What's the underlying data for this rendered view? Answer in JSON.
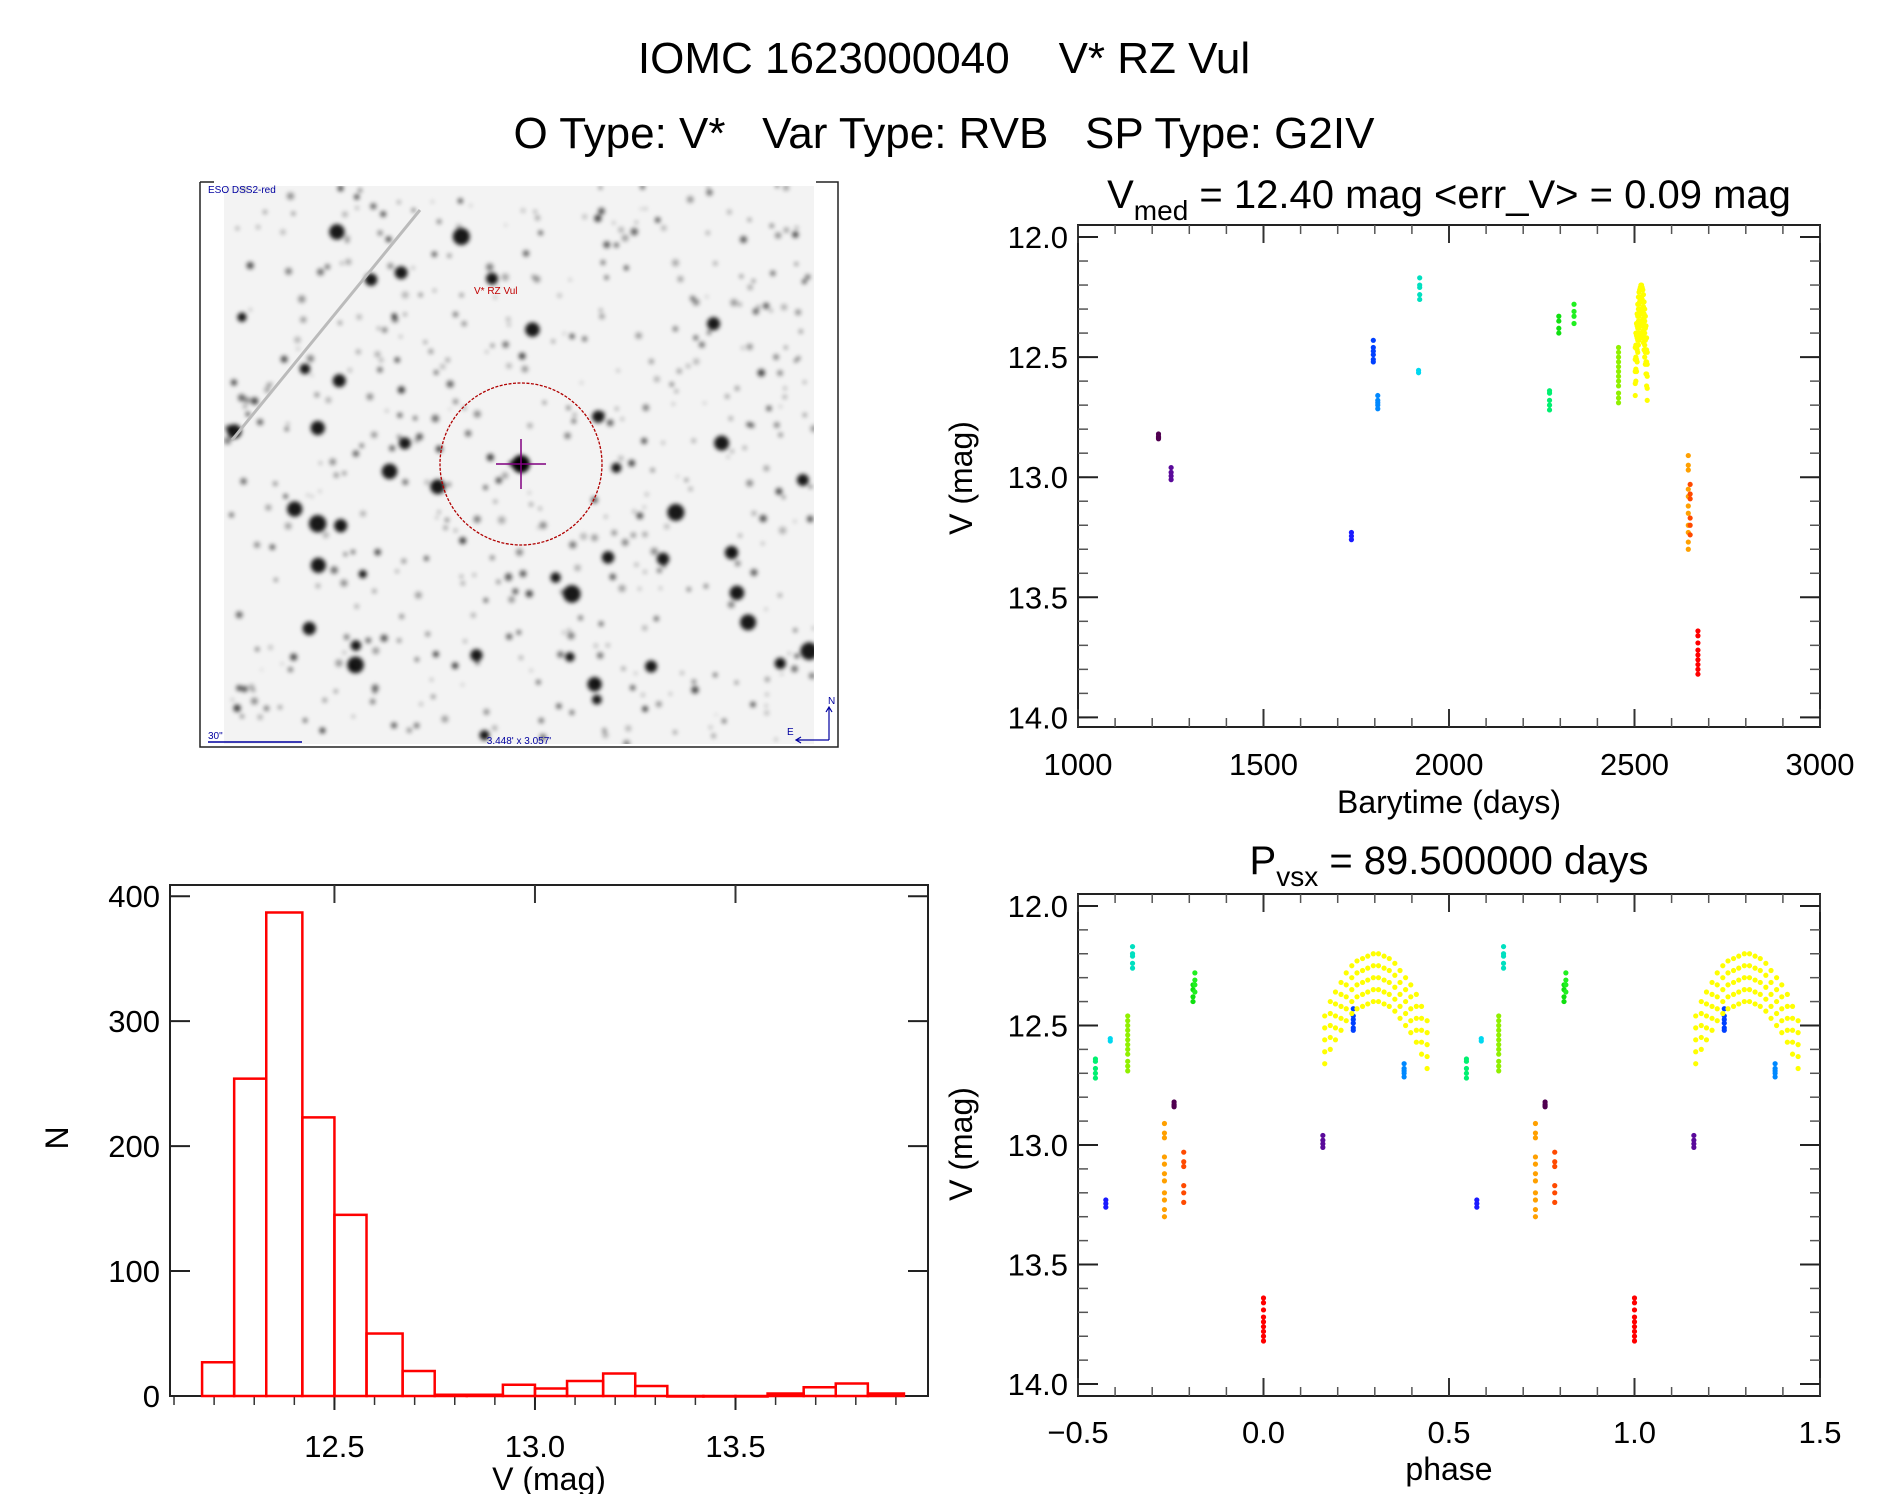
{
  "header": {
    "line1": "IOMC 1623000040    V* RZ Vul",
    "line2": "O Type: V*   Var Type: RVB   SP Type: G2IV"
  },
  "finder_image": {
    "survey_label": "ESO DSS2-red",
    "target_label": "V* RZ Vul",
    "scale_label": "30\"",
    "fov_label": "3.448' x 3.057'",
    "north_label": "N",
    "east_label": "E",
    "circle_color": "#b00000",
    "crosshair_color": "#800080",
    "annotation_color": "#0000a0"
  },
  "chart_data": [
    {
      "type": "scatter",
      "title_main": "V",
      "title_sub": "med",
      "title_rest": " = 12.40 mag <err_V> = 0.09 mag",
      "xlabel": "Barytime (days)",
      "ylabel": "V (mag)",
      "xlim": [
        1000,
        3000
      ],
      "ylim": [
        14.04,
        11.95
      ],
      "y_inverted": true,
      "xticks": [
        "1000",
        "1500",
        "2000",
        "2500",
        "3000"
      ],
      "yticks": [
        "12.0",
        "12.5",
        "13.0",
        "13.5",
        "14.0"
      ],
      "grid": false,
      "color_scale": "rainbow by time",
      "series": [
        {
          "color": "#500050",
          "t": 1217,
          "phase": 0.759,
          "V": [
            12.82,
            12.83,
            12.835,
            12.84
          ]
        },
        {
          "color": "#5a0a9a",
          "t": 1251,
          "phase": 0.16,
          "V": [
            12.96,
            12.98,
            12.995,
            13.01
          ]
        },
        {
          "color": "#1a1aff",
          "t": 1737,
          "phase": 0.575,
          "V": [
            13.23,
            13.245,
            13.26
          ]
        },
        {
          "color": "#0040ff",
          "t": 1796,
          "phase": 0.242,
          "V": [
            12.43,
            12.46,
            12.475,
            12.49,
            12.51,
            12.52
          ]
        },
        {
          "color": "#0088ff",
          "t": 1808,
          "phase": 0.379,
          "V": [
            12.66,
            12.68,
            12.69,
            12.7,
            12.715
          ]
        },
        {
          "color": "#00e0c0",
          "t": 1921,
          "phase": 0.647,
          "V": [
            12.17,
            12.2,
            12.21,
            12.24,
            12.26
          ]
        },
        {
          "color": "#00d8f0",
          "t": 1918,
          "phase": 0.587,
          "V": [
            12.555,
            12.565
          ]
        },
        {
          "color": "#00f070",
          "t": 2271,
          "phase": 0.547,
          "V": [
            12.64,
            12.65,
            12.68,
            12.7,
            12.72
          ]
        },
        {
          "color": "#10e010",
          "t": 2296,
          "phase": 0.81,
          "V": [
            12.33,
            12.35,
            12.38,
            12.4
          ]
        },
        {
          "color": "#20f020",
          "t": 2337,
          "phase": 0.815,
          "V": [
            12.28,
            12.31,
            12.33,
            12.36
          ]
        },
        {
          "color": "#90f000",
          "t": 2457,
          "phase": 0.634,
          "V": [
            12.46,
            12.48,
            12.5,
            12.52,
            12.54,
            12.56,
            12.58,
            12.6,
            12.62,
            12.65,
            12.67,
            12.69
          ]
        },
        {
          "color": "#ffff00",
          "t": 2502.0,
          "phase": 0.165,
          "V": [
            12.46,
            12.51,
            12.56,
            12.61,
            12.66
          ]
        },
        {
          "color": "#ffff00",
          "t": 2503.7,
          "phase": 0.18,
          "V": [
            12.4,
            12.45,
            12.5,
            12.55,
            12.6
          ]
        },
        {
          "color": "#ffff00",
          "t": 2505.4,
          "phase": 0.194,
          "V": [
            12.36,
            12.41,
            12.46,
            12.51,
            12.56
          ]
        },
        {
          "color": "#ffff00",
          "t": 2507.1,
          "phase": 0.209,
          "V": [
            12.32,
            12.37,
            12.42,
            12.47,
            12.52
          ]
        },
        {
          "color": "#ffff00",
          "t": 2508.8,
          "phase": 0.223,
          "V": [
            12.28,
            12.33,
            12.38,
            12.43,
            12.48
          ]
        },
        {
          "color": "#ffff00",
          "t": 2510.5,
          "phase": 0.238,
          "V": [
            12.25,
            12.3,
            12.35,
            12.4,
            12.45
          ]
        },
        {
          "color": "#ffff00",
          "t": 2512.2,
          "phase": 0.252,
          "V": [
            12.23,
            12.28,
            12.33,
            12.38,
            12.43
          ]
        },
        {
          "color": "#ffff00",
          "t": 2513.9,
          "phase": 0.267,
          "V": [
            12.22,
            12.27,
            12.32,
            12.37,
            12.42
          ]
        },
        {
          "color": "#ffff00",
          "t": 2515.6,
          "phase": 0.281,
          "V": [
            12.21,
            12.26,
            12.31,
            12.36,
            12.41
          ]
        },
        {
          "color": "#ffff00",
          "t": 2517.3,
          "phase": 0.296,
          "V": [
            12.2,
            12.25,
            12.3,
            12.35,
            12.4
          ]
        },
        {
          "color": "#ffff00",
          "t": 2519.0,
          "phase": 0.31,
          "V": [
            12.2,
            12.25,
            12.3,
            12.35,
            12.4
          ]
        },
        {
          "color": "#ffff00",
          "t": 2520.7,
          "phase": 0.325,
          "V": [
            12.21,
            12.26,
            12.31,
            12.36,
            12.41
          ]
        },
        {
          "color": "#ffff00",
          "t": 2522.4,
          "phase": 0.339,
          "V": [
            12.22,
            12.27,
            12.32,
            12.37,
            12.42
          ]
        },
        {
          "color": "#ffff00",
          "t": 2524.1,
          "phase": 0.354,
          "V": [
            12.24,
            12.29,
            12.34,
            12.39,
            12.44
          ]
        },
        {
          "color": "#ffff00",
          "t": 2525.8,
          "phase": 0.368,
          "V": [
            12.27,
            12.32,
            12.37,
            12.42,
            12.47
          ]
        },
        {
          "color": "#ffff00",
          "t": 2527.5,
          "phase": 0.383,
          "V": [
            12.3,
            12.35,
            12.4,
            12.45,
            12.5
          ]
        },
        {
          "color": "#ffff00",
          "t": 2529.2,
          "phase": 0.397,
          "V": [
            12.33,
            12.38,
            12.43,
            12.48,
            12.53
          ]
        },
        {
          "color": "#ffff00",
          "t": 2530.9,
          "phase": 0.412,
          "V": [
            12.37,
            12.42,
            12.47,
            12.52,
            12.57
          ]
        },
        {
          "color": "#ffff00",
          "t": 2532.6,
          "phase": 0.426,
          "V": [
            12.42,
            12.47,
            12.52,
            12.57,
            12.62
          ]
        },
        {
          "color": "#ffff00",
          "t": 2534.3,
          "phase": 0.441,
          "V": [
            12.48,
            12.53,
            12.58,
            12.63,
            12.68
          ]
        },
        {
          "color": "#ffa000",
          "t": 2645,
          "phase": 0.733,
          "V": [
            12.91,
            12.95,
            12.97,
            13.05,
            13.08,
            13.12,
            13.15,
            13.2,
            13.23,
            13.27,
            13.3
          ]
        },
        {
          "color": "#ff4a00",
          "t": 2650,
          "phase": 0.785,
          "V": [
            13.03,
            13.07,
            13.09,
            13.17,
            13.2,
            13.24
          ]
        },
        {
          "color": "#ff0000",
          "t": 2671,
          "phase": 0.0,
          "V": [
            13.64,
            13.66,
            13.69,
            13.72,
            13.74,
            13.76,
            13.78,
            13.8,
            13.82
          ]
        }
      ]
    },
    {
      "type": "bar",
      "subtype": "histogram",
      "xlabel": "V (mag)",
      "ylabel": "N",
      "xlim": [
        12.09,
        13.98
      ],
      "ylim": [
        0,
        409
      ],
      "xticks": [
        "12.5",
        "13.0",
        "13.5"
      ],
      "yticks": [
        "0",
        "100",
        "200",
        "300",
        "400"
      ],
      "bar_color": "#ff0000",
      "grid": false,
      "bin_edges": [
        12.17,
        12.25,
        12.33,
        12.42,
        12.5,
        12.58,
        12.67,
        12.75,
        12.83,
        12.92,
        13.0,
        13.08,
        13.17,
        13.25,
        13.33,
        13.42,
        13.5,
        13.58,
        13.67,
        13.75,
        13.83,
        13.92
      ],
      "counts": [
        27,
        254,
        387,
        223,
        145,
        50,
        20,
        1,
        1,
        9,
        6,
        12,
        18,
        8,
        0,
        0,
        0,
        2,
        7,
        10,
        2
      ]
    },
    {
      "type": "scatter",
      "title_main": "P",
      "title_sub": "vsx",
      "title_rest": " = 89.500000 days",
      "xlabel": "phase",
      "ylabel": "V (mag)",
      "xlim": [
        -0.5,
        1.5
      ],
      "ylim": [
        14.05,
        11.95
      ],
      "y_inverted": true,
      "xticks": [
        "−0.5",
        "0.0",
        "0.5",
        "1.0",
        "1.5"
      ],
      "yticks": [
        "12.0",
        "12.5",
        "13.0",
        "13.5",
        "14.0"
      ],
      "grid": false,
      "series_from": "chart_data.0.series (phase)"
    }
  ]
}
